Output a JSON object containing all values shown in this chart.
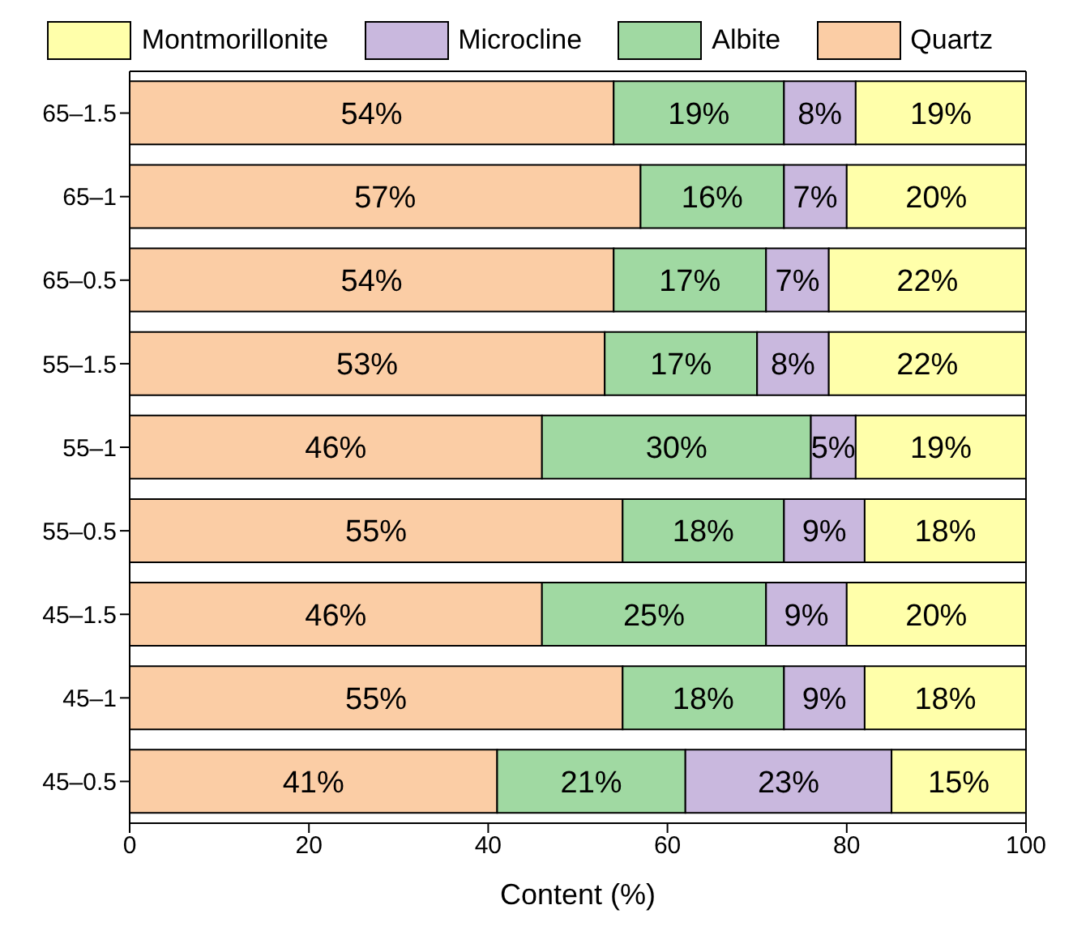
{
  "chart_data": {
    "type": "bar",
    "orientation": "horizontal",
    "stacked": true,
    "xlabel": "Content (%)",
    "categories": [
      "65–1.5",
      "65–1",
      "65–0.5",
      "55–1.5",
      "55–1",
      "55–0.5",
      "45–1.5",
      "45–1",
      "45–0.5"
    ],
    "series": [
      {
        "name": "Quartz",
        "color": "#fbcda5",
        "values": [
          54,
          57,
          54,
          53,
          46,
          55,
          46,
          55,
          41
        ],
        "value_labels": [
          "54%",
          "57%",
          "54%",
          "53%",
          "46%",
          "55%",
          "46%",
          "55%",
          "41%"
        ]
      },
      {
        "name": "Albite",
        "color": "#a0d9a2",
        "values": [
          19,
          16,
          17,
          17,
          30,
          18,
          25,
          18,
          21
        ],
        "value_labels": [
          "19%",
          "16%",
          "17%",
          "17%",
          "30%",
          "18%",
          "25%",
          "18%",
          "21%"
        ]
      },
      {
        "name": "Microcline",
        "color": "#c9b8de",
        "values": [
          8,
          7,
          7,
          8,
          5,
          9,
          9,
          9,
          23
        ],
        "value_labels": [
          "8%",
          "7%",
          "7%",
          "8%",
          "5%",
          "9%",
          "9%",
          "9%",
          "23%"
        ]
      },
      {
        "name": "Montmorillonite",
        "color": "#ffffaa",
        "values": [
          19,
          20,
          22,
          22,
          19,
          18,
          20,
          18,
          15
        ],
        "value_labels": [
          "19%",
          "20%",
          "22%",
          "22%",
          "19%",
          "18%",
          "20%",
          "18%",
          "15%"
        ]
      }
    ],
    "xlim": [
      0,
      100
    ],
    "xticks": [
      0,
      20,
      40,
      60,
      80,
      100
    ],
    "legend": "top"
  }
}
